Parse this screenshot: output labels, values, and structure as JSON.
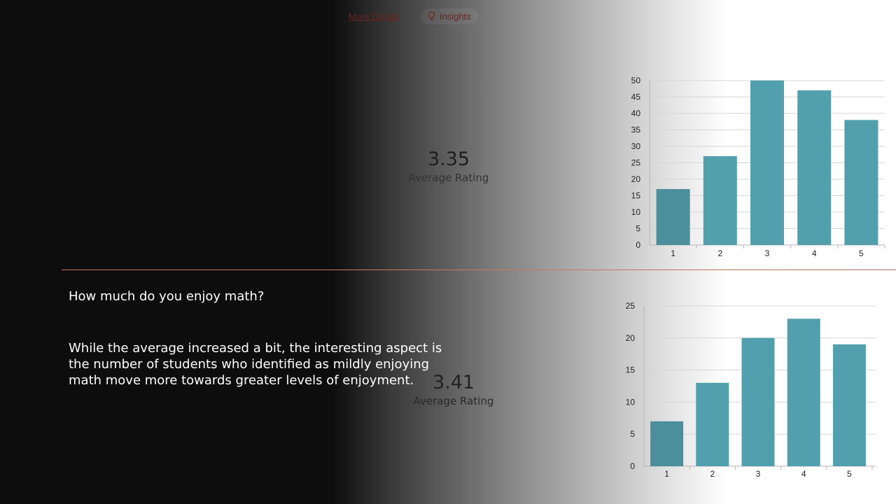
{
  "header": {
    "more_details": "More Details",
    "insights": "Insights",
    "insights_icon": "lightbulb-icon",
    "link_color": "#6b2320"
  },
  "before": {
    "average_value": "3.35",
    "average_label": "Average Rating"
  },
  "after": {
    "average_value": "3.41",
    "average_label": "Average Rating"
  },
  "slide": {
    "question": "How much do you enjoy math?",
    "insight": "While the average increased a bit, the interesting aspect is the number of students who identified as mildly enjoying math move more towards greater levels of enjoyment.",
    "divider_color": "#c8795a"
  },
  "chart_data": [
    {
      "type": "bar",
      "categories": [
        "1",
        "2",
        "3",
        "4",
        "5"
      ],
      "values": [
        17,
        27,
        50,
        47,
        38
      ],
      "ylim": [
        0,
        50
      ],
      "yticks": [
        0,
        5,
        10,
        15,
        20,
        25,
        30,
        35,
        40,
        45,
        50
      ],
      "grid": true,
      "bar_color": "#52a0ad",
      "first_bar_color": "#4a8f9b"
    },
    {
      "type": "bar",
      "categories": [
        "1",
        "2",
        "3",
        "4",
        "5"
      ],
      "values": [
        7,
        13,
        20,
        23,
        19
      ],
      "ylim": [
        0,
        25
      ],
      "yticks": [
        0,
        5,
        10,
        15,
        20,
        25
      ],
      "grid": true,
      "bar_color": "#52a0ad",
      "first_bar_color": "#4a8f9b"
    }
  ]
}
